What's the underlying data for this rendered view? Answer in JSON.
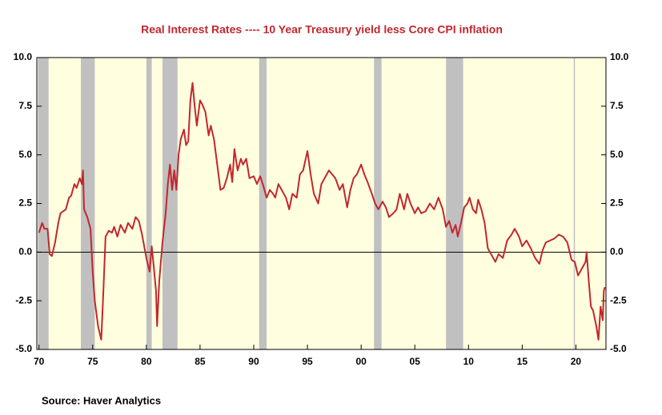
{
  "chart_data": {
    "type": "line",
    "title": "Real Interest Rates ---- 10 Year Treasury yield less Core CPI inflation",
    "source": "Source:  Haver Analytics",
    "color": "#c1272d",
    "background": "#ffffe0",
    "recession_color": "#c0c0c0",
    "xlim": [
      1969.8,
      2022.8
    ],
    "xticks": [
      {
        "value": 1970,
        "label": "70"
      },
      {
        "value": 1975,
        "label": "75"
      },
      {
        "value": 1980,
        "label": "80"
      },
      {
        "value": 1985,
        "label": "85"
      },
      {
        "value": 1990,
        "label": "90"
      },
      {
        "value": 1995,
        "label": "95"
      },
      {
        "value": 2000,
        "label": "00"
      },
      {
        "value": 2005,
        "label": "05"
      },
      {
        "value": 2010,
        "label": "10"
      },
      {
        "value": 2015,
        "label": "15"
      },
      {
        "value": 2020,
        "label": "20"
      }
    ],
    "ylim": [
      -5,
      10
    ],
    "yticks": [
      {
        "value": -5,
        "label": "-5.0"
      },
      {
        "value": -2.5,
        "label": "-2.5"
      },
      {
        "value": 0,
        "label": "0.0"
      },
      {
        "value": 2.5,
        "label": "2.5"
      },
      {
        "value": 5,
        "label": "5.0"
      },
      {
        "value": 7.5,
        "label": "7.5"
      },
      {
        "value": 10,
        "label": "10.0"
      }
    ],
    "y2lim": [
      -5,
      10
    ],
    "y2ticks": [
      {
        "value": -5,
        "label": "-5.0"
      },
      {
        "value": -2.5,
        "label": "-2.5"
      },
      {
        "value": 0,
        "label": "0.0"
      },
      {
        "value": 2.5,
        "label": "2.5"
      },
      {
        "value": 5,
        "label": "5.0"
      },
      {
        "value": 7.5,
        "label": "7.5"
      },
      {
        "value": 10,
        "label": "10.0"
      }
    ],
    "recessions": [
      [
        1969.9,
        1970.9
      ],
      [
        1973.9,
        1975.2
      ],
      [
        1980.0,
        1980.5
      ],
      [
        1981.5,
        1982.9
      ],
      [
        1990.5,
        1991.2
      ],
      [
        2001.2,
        2001.9
      ],
      [
        2007.9,
        2009.5
      ],
      [
        2019.8,
        2019.9
      ]
    ],
    "x": [
      1970.0,
      1970.3,
      1970.5,
      1970.8,
      1971.0,
      1971.2,
      1971.5,
      1971.8,
      1972.0,
      1972.5,
      1972.8,
      1973.0,
      1973.3,
      1973.5,
      1973.8,
      1974.0,
      1974.1,
      1974.2,
      1974.5,
      1974.8,
      1975.0,
      1975.2,
      1975.5,
      1975.8,
      1976.0,
      1976.2,
      1976.5,
      1976.8,
      1977.0,
      1977.3,
      1977.6,
      1978.0,
      1978.3,
      1978.7,
      1979.0,
      1979.3,
      1979.6,
      1980.0,
      1980.3,
      1980.5,
      1980.7,
      1980.9,
      1981.0,
      1981.2,
      1981.5,
      1981.8,
      1982.0,
      1982.2,
      1982.4,
      1982.6,
      1982.8,
      1983.0,
      1983.2,
      1983.5,
      1983.7,
      1983.9,
      1984.1,
      1984.3,
      1984.5,
      1984.7,
      1985.0,
      1985.2,
      1985.5,
      1985.8,
      1986.0,
      1986.3,
      1986.6,
      1986.9,
      1987.2,
      1987.5,
      1987.8,
      1988.0,
      1988.2,
      1988.5,
      1988.8,
      1989.0,
      1989.3,
      1989.6,
      1990.0,
      1990.3,
      1990.6,
      1990.9,
      1991.2,
      1991.5,
      1991.8,
      1992.0,
      1992.3,
      1992.6,
      1993.0,
      1993.3,
      1993.6,
      1994.0,
      1994.3,
      1994.6,
      1995.0,
      1995.3,
      1995.6,
      1996.0,
      1996.3,
      1996.6,
      1997.0,
      1997.3,
      1997.6,
      1998.0,
      1998.3,
      1998.7,
      1999.0,
      1999.3,
      1999.6,
      2000.0,
      2000.3,
      2000.6,
      2001.0,
      2001.3,
      2001.6,
      2002.0,
      2002.3,
      2002.6,
      2003.0,
      2003.3,
      2003.6,
      2004.0,
      2004.3,
      2004.6,
      2005.0,
      2005.3,
      2005.6,
      2006.0,
      2006.4,
      2006.8,
      2007.2,
      2007.6,
      2007.9,
      2008.2,
      2008.5,
      2008.8,
      2009.0,
      2009.3,
      2009.6,
      2009.9,
      2010.1,
      2010.4,
      2010.7,
      2010.9,
      2011.2,
      2011.5,
      2011.8,
      2012.2,
      2012.5,
      2012.8,
      2013.2,
      2013.6,
      2014.0,
      2014.3,
      2014.7,
      2015.0,
      2015.4,
      2015.8,
      2016.2,
      2016.6,
      2016.9,
      2017.2,
      2017.6,
      2018.0,
      2018.4,
      2018.8,
      2019.2,
      2019.6,
      2019.9,
      2020.2,
      2020.5,
      2020.9,
      2021.0,
      2021.2,
      2021.4,
      2021.6,
      2021.9,
      2022.1,
      2022.3,
      2022.5,
      2022.6,
      2022.7
    ],
    "values": [
      1.0,
      1.5,
      1.2,
      1.2,
      -0.1,
      -0.2,
      0.5,
      1.5,
      2.0,
      2.2,
      2.8,
      2.9,
      3.5,
      3.3,
      3.8,
      3.5,
      4.2,
      2.2,
      1.8,
      1.2,
      -1.0,
      -2.5,
      -3.8,
      -4.5,
      -2.0,
      0.8,
      1.1,
      1.0,
      1.3,
      0.8,
      1.4,
      1.0,
      1.5,
      1.2,
      1.8,
      1.6,
      0.9,
      -0.3,
      -1.0,
      0.3,
      -0.8,
      -2.0,
      -3.8,
      -1.5,
      0.5,
      2.0,
      3.5,
      4.5,
      3.2,
      4.2,
      3.2,
      5.0,
      5.8,
      6.3,
      5.5,
      5.7,
      7.8,
      8.7,
      7.5,
      6.5,
      7.8,
      7.6,
      7.2,
      6.0,
      6.5,
      5.8,
      4.5,
      3.2,
      3.3,
      3.8,
      4.5,
      3.6,
      5.3,
      4.2,
      4.8,
      4.5,
      4.8,
      3.8,
      3.9,
      3.5,
      3.9,
      3.4,
      2.8,
      3.2,
      3.0,
      2.8,
      3.5,
      3.2,
      2.8,
      2.2,
      3.0,
      2.8,
      4.0,
      4.2,
      5.2,
      4.0,
      3.0,
      2.5,
      3.5,
      3.8,
      4.2,
      4.0,
      3.8,
      3.2,
      3.5,
      2.3,
      3.2,
      3.8,
      4.0,
      4.5,
      4.0,
      3.6,
      3.0,
      2.5,
      2.2,
      2.6,
      2.3,
      1.8,
      2.0,
      2.2,
      3.0,
      2.2,
      3.0,
      2.5,
      2.0,
      2.3,
      2.0,
      2.1,
      2.5,
      2.2,
      2.8,
      2.2,
      1.3,
      1.6,
      1.0,
      1.4,
      0.8,
      1.5,
      2.3,
      2.5,
      2.8,
      2.2,
      2.0,
      2.7,
      2.2,
      1.5,
      0.2,
      -0.2,
      -0.5,
      -0.1,
      -0.3,
      0.6,
      0.9,
      1.2,
      0.8,
      0.3,
      0.6,
      0.2,
      -0.3,
      -0.6,
      0.1,
      0.5,
      0.6,
      0.7,
      0.9,
      0.8,
      0.5,
      -0.4,
      -0.5,
      -1.2,
      -0.9,
      -0.5,
      0.0,
      -1.5,
      -2.8,
      -3.0,
      -3.8,
      -4.5,
      -2.8,
      -3.5,
      -2.0,
      -1.8
    ]
  }
}
